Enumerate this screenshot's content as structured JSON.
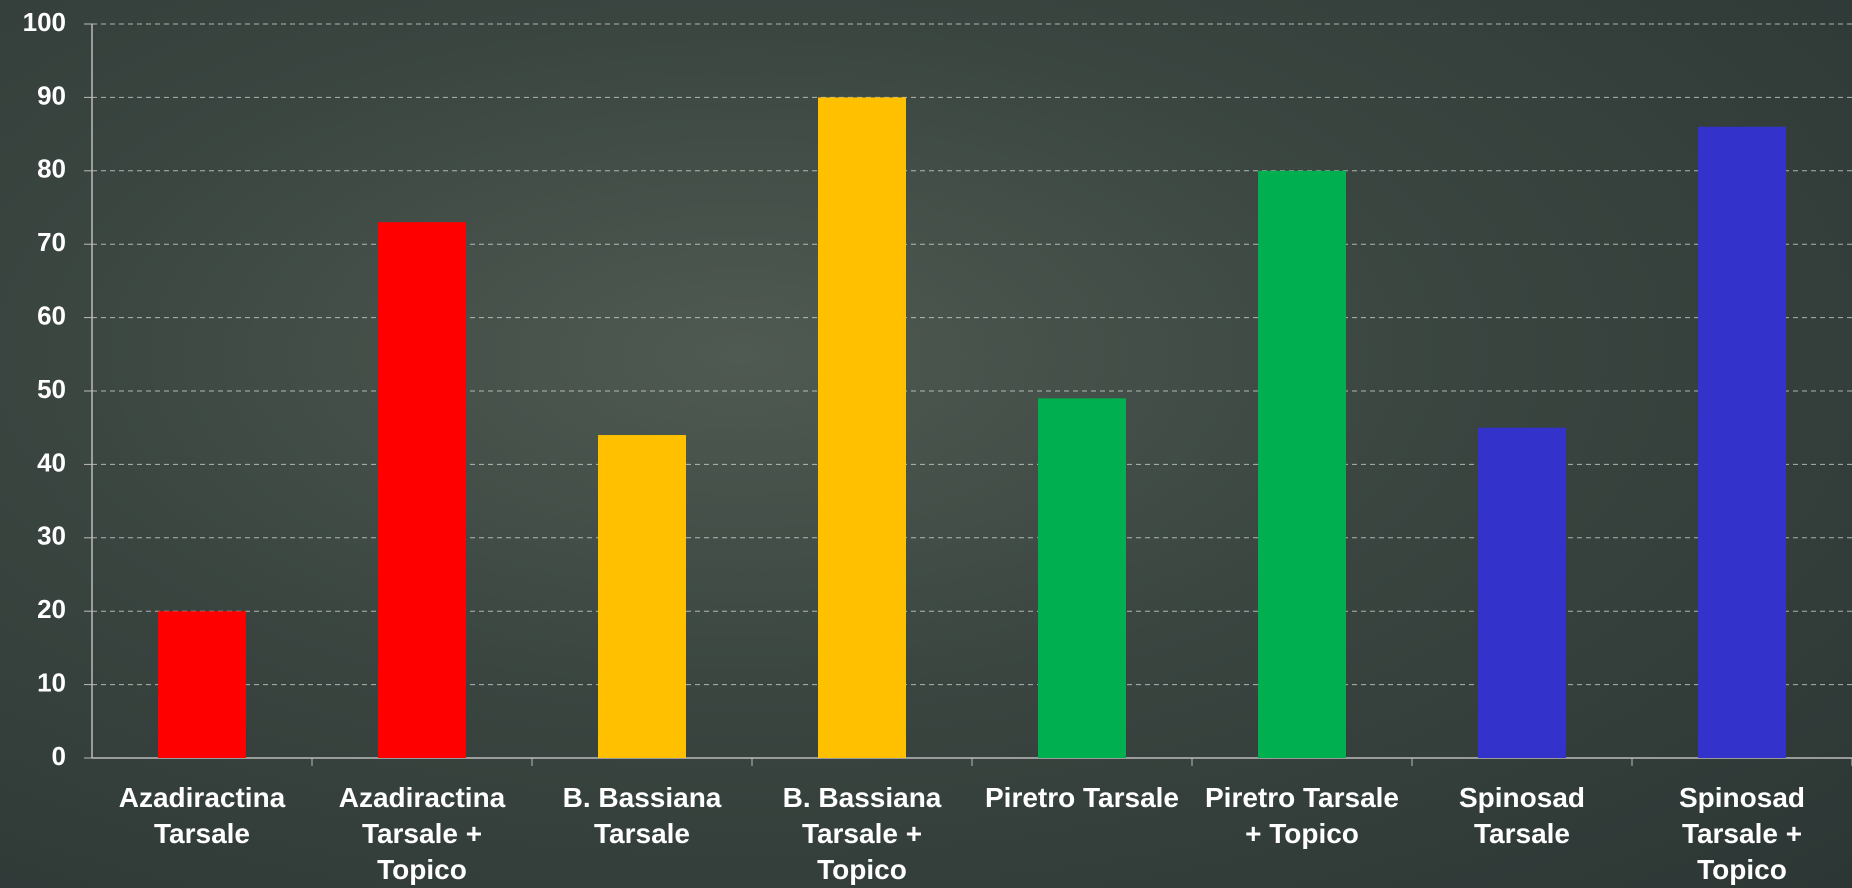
{
  "chart_data": {
    "type": "bar",
    "categories": [
      "Azadiractina Tarsale",
      "Azadiractina Tarsale + Topico",
      "B. Bassiana Tarsale",
      "B. Bassiana Tarsale + Topico",
      "Piretro Tarsale",
      "Piretro Tarsale + Topico",
      "Spinosad Tarsale",
      "Spinosad Tarsale + Topico"
    ],
    "values": [
      20,
      73,
      44,
      90,
      49,
      80,
      45,
      86
    ],
    "colors": [
      "#ff0000",
      "#ff0000",
      "#ffc000",
      "#ffc000",
      "#00b050",
      "#00b050",
      "#3333cc",
      "#3333cc"
    ],
    "ylim": [
      0,
      100
    ],
    "yticks": [
      0,
      10,
      20,
      30,
      40,
      50,
      60,
      70,
      80,
      90,
      100
    ],
    "grid": true
  }
}
